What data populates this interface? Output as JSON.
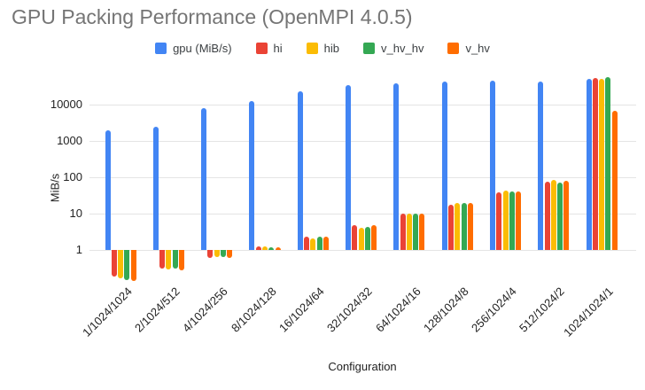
{
  "title": "GPU Packing Performance (OpenMPI 4.0.5)",
  "chart_data": {
    "type": "bar",
    "title": "GPU Packing Performance (OpenMPI 4.0.5)",
    "xlabel": "Configuration",
    "ylabel": "MiB/s",
    "y_scale": "log",
    "y_ticks": [
      1,
      10,
      100,
      1000,
      10000
    ],
    "ylim": [
      0.1,
      60000
    ],
    "grid": true,
    "legend_position": "top",
    "categories": [
      "1/1024/1024",
      "2/1024/512",
      "4/1024/256",
      "8/1024/128",
      "16/1024/64",
      "32/1024/32",
      "64/1024/16",
      "128/1024/8",
      "256/1024/4",
      "512/1024/2",
      "1024/1024/1"
    ],
    "series": [
      {
        "name": "gpu (MiB/s)",
        "color": "#4285F4",
        "values": [
          2000,
          2400,
          8000,
          12500,
          23000,
          34000,
          39000,
          43000,
          46000,
          43000,
          52000
        ]
      },
      {
        "name": "hi",
        "color": "#EA4335",
        "values": [
          0.19,
          0.31,
          0.6,
          1.25,
          2.3,
          4.8,
          10,
          18,
          38,
          75,
          54000
        ]
      },
      {
        "name": "hib",
        "color": "#FBBC04",
        "values": [
          0.17,
          0.29,
          0.65,
          1.25,
          2.1,
          4.1,
          10,
          20,
          42,
          84,
          52000
        ]
      },
      {
        "name": "v_hv_hv",
        "color": "#34A853",
        "values": [
          0.15,
          0.31,
          0.65,
          1.2,
          2.3,
          4.3,
          10,
          20,
          41,
          72,
          56000
        ]
      },
      {
        "name": "v_hv",
        "color": "#FF6D00",
        "values": [
          0.14,
          0.27,
          0.6,
          1.2,
          2.3,
          4.8,
          10,
          20,
          41,
          80,
          6800
        ]
      }
    ]
  },
  "colors": {
    "title_text": "#757575",
    "axis_text": "#222222",
    "legend_text": "#3c4043",
    "gridline": "#e4e4e4",
    "background": "#ffffff"
  }
}
